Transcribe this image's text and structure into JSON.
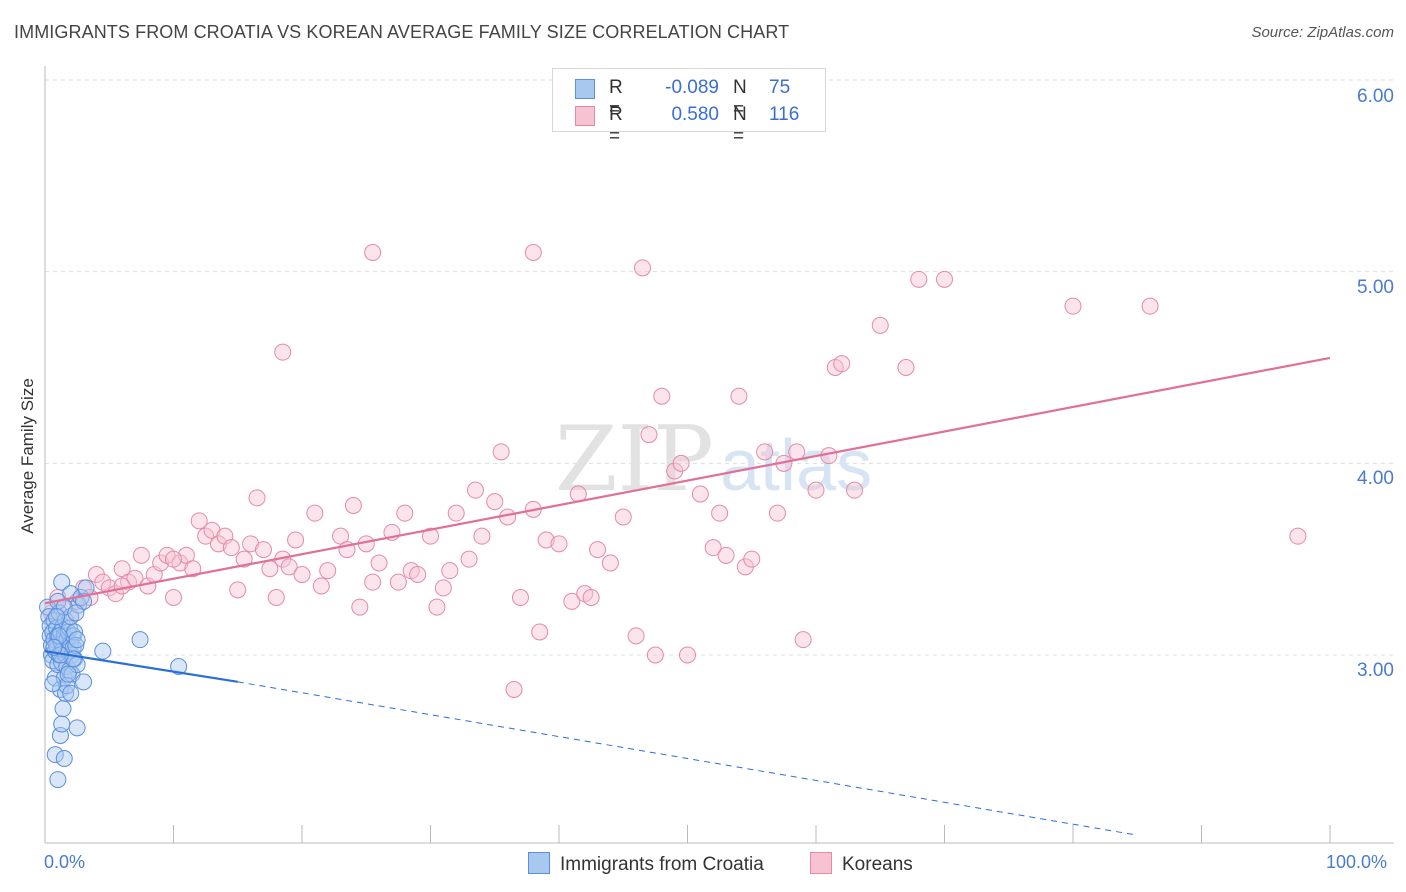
{
  "title": "IMMIGRANTS FROM CROATIA VS KOREAN AVERAGE FAMILY SIZE CORRELATION CHART",
  "source": "Source: ZipAtlas.com",
  "watermark": {
    "zip": "ZIP",
    "atlas": "atlas"
  },
  "legend": {
    "series1": {
      "r_label": "R =",
      "r_value": "-0.089",
      "n_label": "N =",
      "n_value": "75"
    },
    "series2": {
      "r_label": "R =",
      "r_value": "0.580",
      "n_label": "N =",
      "n_value": "116"
    }
  },
  "bottom_legend": {
    "series1": "Immigrants from Croatia",
    "series2": "Koreans"
  },
  "colors": {
    "blue_fill": "#a9c8f0",
    "blue_stroke": "#5b8fde",
    "blue_line": "#2a6fd6",
    "pink_fill": "#f7c3d3",
    "pink_stroke": "#e58aa8",
    "pink_line": "#e07098",
    "tick_text": "#4a7bd0",
    "grid": "#dddddd"
  },
  "chart_data": {
    "type": "scatter",
    "title": "IMMIGRANTS FROM CROATIA VS KOREAN AVERAGE FAMILY SIZE CORRELATION CHART",
    "xlabel": "",
    "ylabel": "Average Family Size",
    "xlim": [
      0,
      100
    ],
    "ylim": [
      2.0,
      6.1
    ],
    "x_tick_labels": [
      "0.0%",
      "100.0%"
    ],
    "y_ticks": [
      3.0,
      4.0,
      5.0,
      6.0
    ],
    "y_tick_labels": [
      "3.00",
      "4.00",
      "5.00",
      "6.00"
    ],
    "grid": true,
    "legend_position": "top-center",
    "series": [
      {
        "name": "Immigrants from Croatia",
        "R": -0.089,
        "N": 75,
        "trend_solid": [
          [
            0,
            3.02
          ],
          [
            15,
            2.86
          ]
        ],
        "trend_dashed": [
          [
            15,
            2.86
          ],
          [
            85,
            2.06
          ]
        ],
        "points": [
          [
            0.2,
            3.25
          ],
          [
            0.3,
            3.2
          ],
          [
            0.4,
            3.15
          ],
          [
            0.4,
            3.1
          ],
          [
            0.5,
            3.05
          ],
          [
            0.5,
            3.0
          ],
          [
            0.6,
            3.12
          ],
          [
            0.6,
            2.97
          ],
          [
            0.7,
            3.18
          ],
          [
            0.7,
            3.08
          ],
          [
            0.8,
            3.02
          ],
          [
            0.8,
            2.88
          ],
          [
            0.9,
            3.14
          ],
          [
            0.9,
            3.05
          ],
          [
            1.0,
            3.1
          ],
          [
            1.0,
            2.95
          ],
          [
            1.1,
            3.22
          ],
          [
            1.1,
            3.0
          ],
          [
            1.2,
            3.12
          ],
          [
            1.2,
            2.82
          ],
          [
            1.3,
            3.06
          ],
          [
            1.3,
            2.96
          ],
          [
            1.4,
            3.15
          ],
          [
            1.4,
            3.03
          ],
          [
            1.5,
            3.1
          ],
          [
            1.5,
            2.88
          ],
          [
            1.6,
            3.0
          ],
          [
            1.6,
            3.18
          ],
          [
            1.7,
            3.08
          ],
          [
            1.7,
            2.94
          ],
          [
            1.8,
            3.12
          ],
          [
            1.8,
            3.02
          ],
          [
            1.9,
            3.14
          ],
          [
            1.9,
            2.92
          ],
          [
            2.0,
            3.06
          ],
          [
            2.0,
            3.2
          ],
          [
            2.1,
            3.0
          ],
          [
            2.1,
            2.9
          ],
          [
            2.2,
            3.1
          ],
          [
            2.2,
            3.04
          ],
          [
            2.3,
            3.12
          ],
          [
            2.3,
            2.98
          ],
          [
            2.4,
            3.05
          ],
          [
            2.5,
            3.08
          ],
          [
            2.5,
            2.95
          ],
          [
            0.8,
            2.48
          ],
          [
            1.0,
            2.35
          ],
          [
            1.2,
            2.58
          ],
          [
            1.3,
            2.64
          ],
          [
            1.4,
            2.72
          ],
          [
            1.5,
            2.46
          ],
          [
            1.6,
            2.8
          ],
          [
            1.7,
            2.84
          ],
          [
            1.8,
            2.9
          ],
          [
            2.0,
            2.8
          ],
          [
            2.2,
            2.98
          ],
          [
            1.3,
            3.38
          ],
          [
            2.0,
            3.32
          ],
          [
            2.6,
            3.26
          ],
          [
            2.8,
            3.3
          ],
          [
            3.0,
            3.28
          ],
          [
            3.2,
            3.35
          ],
          [
            2.5,
            2.62
          ],
          [
            3.0,
            2.86
          ],
          [
            4.5,
            3.02
          ],
          [
            7.4,
            3.08
          ],
          [
            10.4,
            2.94
          ],
          [
            1.0,
            3.28
          ],
          [
            1.5,
            3.25
          ],
          [
            0.6,
            2.85
          ],
          [
            0.9,
            3.2
          ],
          [
            1.1,
            3.1
          ],
          [
            2.4,
            3.22
          ],
          [
            1.2,
            3.0
          ],
          [
            0.7,
            3.04
          ]
        ]
      },
      {
        "name": "Koreans",
        "R": 0.58,
        "N": 116,
        "trend": [
          [
            0,
            3.27
          ],
          [
            100,
            4.55
          ]
        ],
        "points": [
          [
            0.5,
            3.22
          ],
          [
            1.0,
            3.3
          ],
          [
            1.5,
            3.25
          ],
          [
            2.0,
            3.2
          ],
          [
            2.5,
            3.28
          ],
          [
            3.0,
            3.35
          ],
          [
            3.5,
            3.3
          ],
          [
            4.0,
            3.42
          ],
          [
            4.5,
            3.38
          ],
          [
            5.0,
            3.35
          ],
          [
            5.5,
            3.32
          ],
          [
            6.0,
            3.45
          ],
          [
            6.5,
            3.38
          ],
          [
            7.0,
            3.4
          ],
          [
            7.5,
            3.52
          ],
          [
            8.0,
            3.36
          ],
          [
            8.5,
            3.42
          ],
          [
            9.0,
            3.48
          ],
          [
            9.5,
            3.52
          ],
          [
            10.0,
            3.3
          ],
          [
            10.5,
            3.48
          ],
          [
            11.0,
            3.52
          ],
          [
            11.5,
            3.45
          ],
          [
            12.0,
            3.7
          ],
          [
            12.5,
            3.62
          ],
          [
            13.0,
            3.65
          ],
          [
            13.5,
            3.58
          ],
          [
            14.0,
            3.62
          ],
          [
            14.5,
            3.56
          ],
          [
            15.0,
            3.34
          ],
          [
            15.5,
            3.5
          ],
          [
            16.0,
            3.58
          ],
          [
            16.5,
            3.82
          ],
          [
            17.0,
            3.55
          ],
          [
            17.5,
            3.45
          ],
          [
            18.0,
            3.3
          ],
          [
            18.5,
            3.5
          ],
          [
            19.0,
            3.46
          ],
          [
            19.5,
            3.6
          ],
          [
            20.0,
            3.42
          ],
          [
            21.0,
            3.74
          ],
          [
            21.5,
            3.36
          ],
          [
            22.0,
            3.44
          ],
          [
            23.0,
            3.62
          ],
          [
            23.5,
            3.55
          ],
          [
            24.0,
            3.78
          ],
          [
            24.5,
            3.25
          ],
          [
            25.0,
            3.58
          ],
          [
            25.5,
            3.38
          ],
          [
            26.0,
            3.48
          ],
          [
            27.0,
            3.64
          ],
          [
            27.5,
            3.38
          ],
          [
            28.0,
            3.74
          ],
          [
            28.5,
            3.44
          ],
          [
            29.0,
            3.42
          ],
          [
            30.0,
            3.62
          ],
          [
            30.5,
            3.25
          ],
          [
            31.0,
            3.35
          ],
          [
            31.5,
            3.44
          ],
          [
            32.0,
            3.74
          ],
          [
            33.0,
            3.5
          ],
          [
            33.5,
            3.86
          ],
          [
            34.0,
            3.62
          ],
          [
            35.0,
            3.8
          ],
          [
            35.5,
            4.06
          ],
          [
            36.0,
            3.72
          ],
          [
            36.5,
            2.82
          ],
          [
            37.0,
            3.3
          ],
          [
            38.0,
            3.76
          ],
          [
            38.5,
            3.12
          ],
          [
            39.0,
            3.6
          ],
          [
            40.0,
            3.58
          ],
          [
            41.0,
            3.28
          ],
          [
            41.5,
            3.84
          ],
          [
            42.0,
            3.32
          ],
          [
            42.5,
            3.3
          ],
          [
            43.0,
            3.55
          ],
          [
            44.0,
            3.48
          ],
          [
            45.0,
            3.72
          ],
          [
            46.0,
            3.1
          ],
          [
            46.5,
            5.02
          ],
          [
            47.0,
            4.15
          ],
          [
            48.0,
            4.35
          ],
          [
            47.5,
            3.0
          ],
          [
            49.0,
            3.96
          ],
          [
            49.5,
            4.0
          ],
          [
            50.0,
            3.0
          ],
          [
            51.0,
            3.84
          ],
          [
            52.0,
            3.56
          ],
          [
            52.5,
            3.74
          ],
          [
            53.0,
            3.52
          ],
          [
            54.0,
            4.35
          ],
          [
            54.5,
            3.46
          ],
          [
            55.0,
            3.5
          ],
          [
            56.0,
            4.06
          ],
          [
            57.0,
            3.74
          ],
          [
            57.5,
            4.0
          ],
          [
            58.5,
            4.06
          ],
          [
            59.0,
            3.08
          ],
          [
            60.0,
            3.86
          ],
          [
            61.0,
            4.04
          ],
          [
            61.5,
            4.5
          ],
          [
            62.0,
            4.52
          ],
          [
            63.0,
            3.86
          ],
          [
            65.0,
            4.72
          ],
          [
            67.0,
            4.5
          ],
          [
            68.0,
            4.96
          ],
          [
            70.0,
            4.96
          ],
          [
            80.0,
            4.82
          ],
          [
            86.0,
            4.82
          ],
          [
            97.5,
            3.62
          ],
          [
            25.5,
            5.1
          ],
          [
            38.0,
            5.1
          ],
          [
            18.5,
            4.58
          ],
          [
            10.0,
            3.5
          ],
          [
            6.0,
            3.36
          ]
        ]
      }
    ]
  }
}
